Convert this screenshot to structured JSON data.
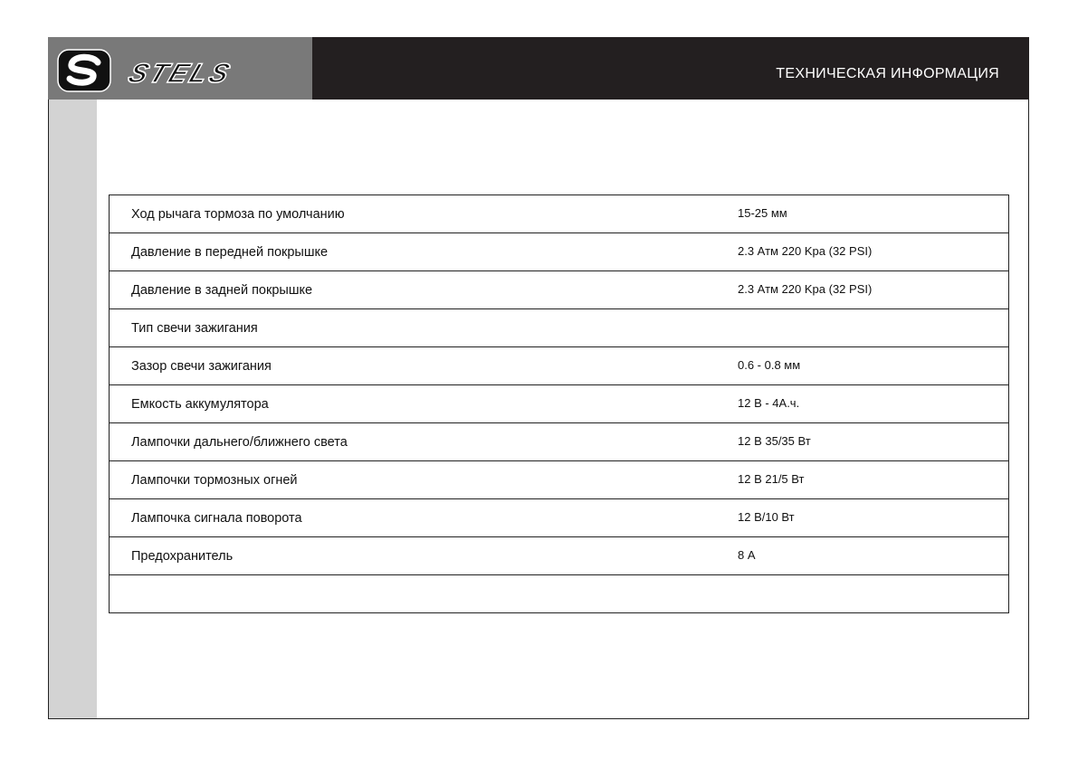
{
  "header": {
    "brand": "STELS",
    "title": "ТЕХНИЧЕСКАЯ ИНФОРМАЦИЯ"
  },
  "specs": [
    {
      "label": "Ход рычага тормоза по умолчанию",
      "value": "15-25 мм"
    },
    {
      "label": "Давление в передней покрышке",
      "value": "2.3 Атм 220 Kpa (32 PSI)"
    },
    {
      "label": "Давление в задней покрышке",
      "value": "2.3 Атм 220 Kpa (32 PSI)"
    },
    {
      "label": "Тип свечи зажигания",
      "value": ""
    },
    {
      "label": "Зазор свечи зажигания",
      "value": "0.6 - 0.8 мм"
    },
    {
      "label": "Емкость аккумулятора",
      "value": "12 В - 4А.ч."
    },
    {
      "label": "Лампочки дальнего/ближнего света",
      "value": "12 В 35/35 Вт"
    },
    {
      "label": "Лампочки тормозных огней",
      "value": "12 В 21/5 Вт"
    },
    {
      "label": "Лампочка сигнала поворота",
      "value": "12 В/10 Вт"
    },
    {
      "label": "Предохранитель",
      "value": "8 А"
    },
    {
      "label": "",
      "value": ""
    }
  ]
}
